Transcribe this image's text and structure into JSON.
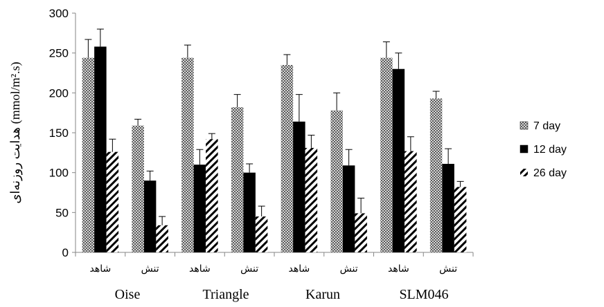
{
  "chart_data": {
    "type": "bar",
    "ylabel": "هدایت روزنه‌ای (mmol/m².s)",
    "ylim": [
      0,
      300
    ],
    "yticks": [
      0,
      50,
      100,
      150,
      200,
      250,
      300
    ],
    "grid": false,
    "legend_position": "right",
    "groups": [
      "Oise",
      "Triangle",
      "Karun",
      "SLM046"
    ],
    "categories": [
      "شاهد",
      "تنش",
      "شاهد",
      "تنش",
      "شاهد",
      "تنش",
      "شاهد",
      "تنش"
    ],
    "series": [
      {
        "name": "7 day",
        "pattern": "crosshatch",
        "values": [
          244,
          159,
          244,
          182,
          235,
          178,
          244,
          193
        ],
        "errors": [
          23,
          8,
          16,
          16,
          13,
          22,
          20,
          9
        ]
      },
      {
        "name": "12 day",
        "pattern": "solid",
        "values": [
          258,
          90,
          110,
          100,
          164,
          109,
          230,
          111
        ],
        "errors": [
          22,
          12,
          19,
          11,
          34,
          20,
          20,
          19
        ]
      },
      {
        "name": "26 day",
        "pattern": "diagonal",
        "values": [
          126,
          34,
          142,
          45,
          131,
          49,
          127,
          82
        ],
        "errors": [
          16,
          11,
          7,
          13,
          16,
          19,
          18,
          7
        ]
      }
    ]
  }
}
